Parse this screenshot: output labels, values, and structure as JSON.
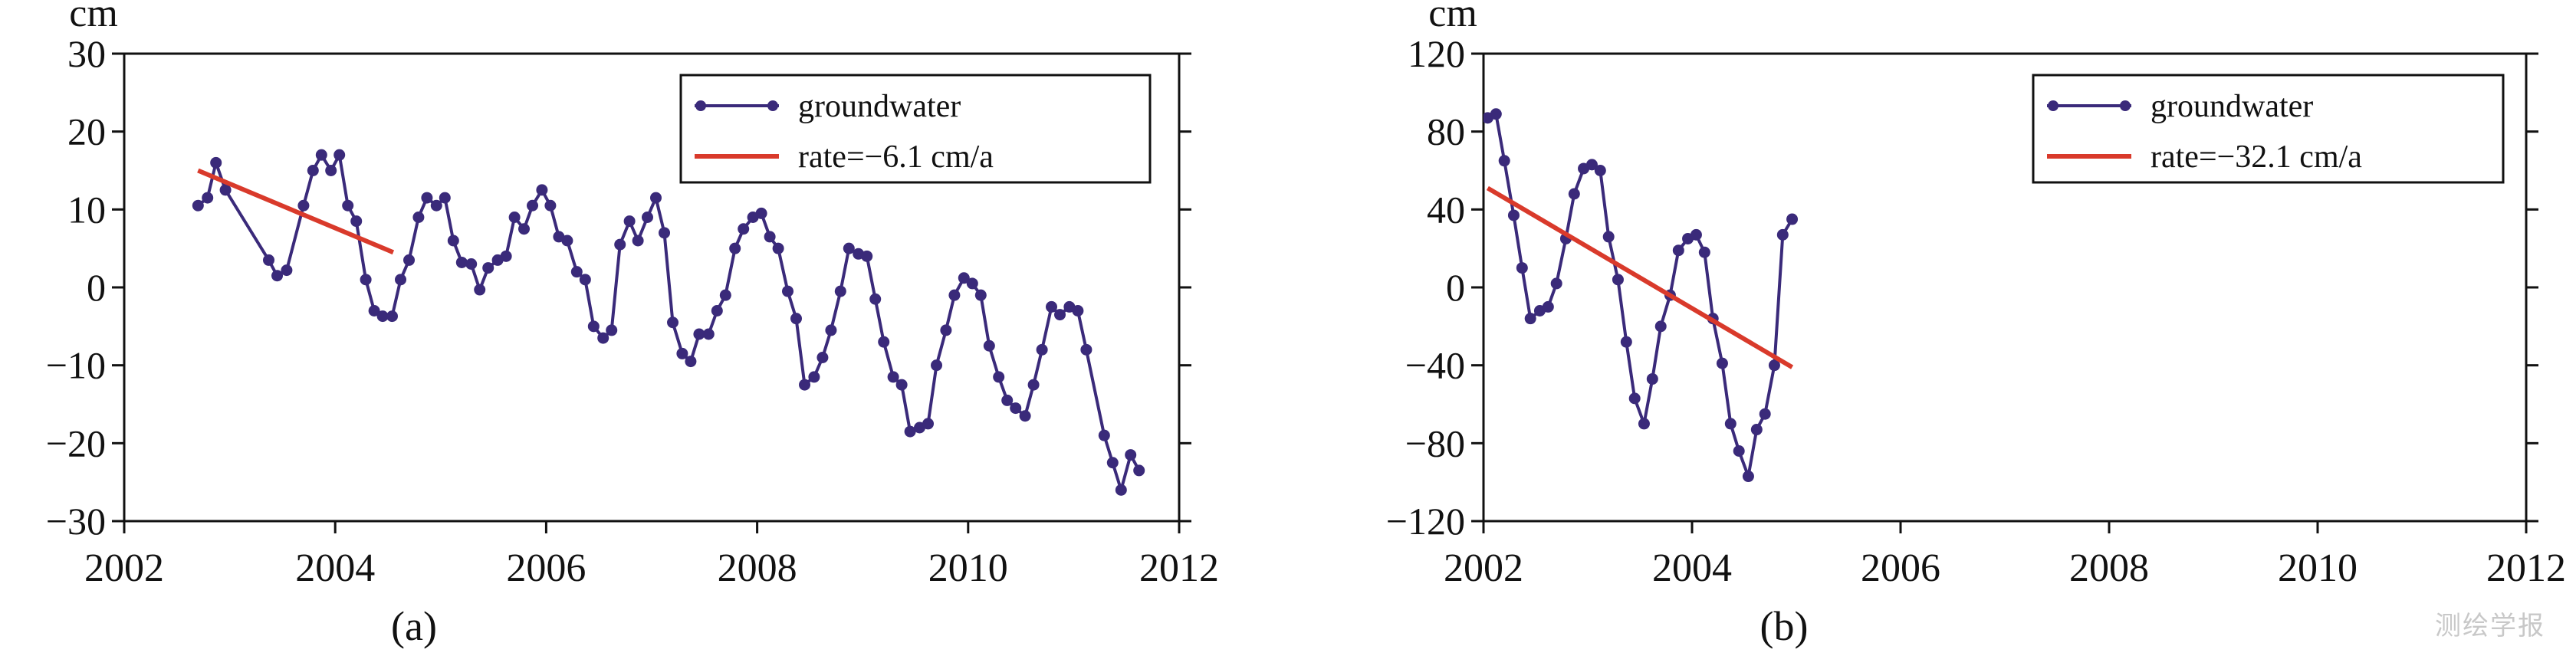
{
  "watermark": "测绘学报",
  "chart_data": [
    {
      "type": "line",
      "panel_label": "(a)",
      "ylabel": "cm",
      "xlim": [
        2002,
        2012
      ],
      "ylim": [
        -30,
        30
      ],
      "x_ticks": [
        2002,
        2004,
        2006,
        2008,
        2010,
        2012
      ],
      "y_ticks": [
        -30,
        -20,
        -10,
        0,
        10,
        20,
        30
      ],
      "legend_position": "top-right",
      "series": [
        {
          "name": "groundwater",
          "color": "#3a2a7a",
          "marker": "circle",
          "points": [
            [
              2002.7,
              10.5
            ],
            [
              2002.79,
              11.5
            ],
            [
              2002.87,
              16
            ],
            [
              2002.96,
              12.5
            ],
            [
              2003.37,
              3.5
            ],
            [
              2003.45,
              1.5
            ],
            [
              2003.54,
              2.2
            ],
            [
              2003.7,
              10.5
            ],
            [
              2003.79,
              15
            ],
            [
              2003.87,
              17
            ],
            [
              2003.96,
              15
            ],
            [
              2004.04,
              17
            ],
            [
              2004.12,
              10.5
            ],
            [
              2004.2,
              8.5
            ],
            [
              2004.29,
              1
            ],
            [
              2004.37,
              -3
            ],
            [
              2004.45,
              -3.7
            ],
            [
              2004.54,
              -3.7
            ],
            [
              2004.62,
              1
            ],
            [
              2004.7,
              3.5
            ],
            [
              2004.79,
              9
            ],
            [
              2004.87,
              11.5
            ],
            [
              2004.96,
              10.5
            ],
            [
              2005.04,
              11.5
            ],
            [
              2005.12,
              6
            ],
            [
              2005.2,
              3.2
            ],
            [
              2005.29,
              3
            ],
            [
              2005.37,
              -0.3
            ],
            [
              2005.45,
              2.5
            ],
            [
              2005.54,
              3.5
            ],
            [
              2005.62,
              4
            ],
            [
              2005.7,
              9
            ],
            [
              2005.79,
              7.5
            ],
            [
              2005.87,
              10.5
            ],
            [
              2005.96,
              12.5
            ],
            [
              2006.04,
              10.5
            ],
            [
              2006.12,
              6.5
            ],
            [
              2006.2,
              6
            ],
            [
              2006.29,
              2
            ],
            [
              2006.37,
              1
            ],
            [
              2006.45,
              -5
            ],
            [
              2006.54,
              -6.5
            ],
            [
              2006.62,
              -5.5
            ],
            [
              2006.7,
              5.5
            ],
            [
              2006.79,
              8.5
            ],
            [
              2006.87,
              6
            ],
            [
              2006.96,
              9
            ],
            [
              2007.04,
              11.5
            ],
            [
              2007.12,
              7
            ],
            [
              2007.2,
              -4.5
            ],
            [
              2007.29,
              -8.5
            ],
            [
              2007.37,
              -9.5
            ],
            [
              2007.45,
              -6
            ],
            [
              2007.54,
              -6
            ],
            [
              2007.62,
              -3
            ],
            [
              2007.7,
              -1
            ],
            [
              2007.79,
              5
            ],
            [
              2007.87,
              7.5
            ],
            [
              2007.96,
              9
            ],
            [
              2008.04,
              9.5
            ],
            [
              2008.12,
              6.5
            ],
            [
              2008.2,
              5
            ],
            [
              2008.29,
              -0.5
            ],
            [
              2008.37,
              -4
            ],
            [
              2008.45,
              -12.5
            ],
            [
              2008.54,
              -11.5
            ],
            [
              2008.62,
              -9
            ],
            [
              2008.7,
              -5.5
            ],
            [
              2008.79,
              -0.5
            ],
            [
              2008.87,
              5
            ],
            [
              2008.96,
              4.3
            ],
            [
              2009.04,
              4
            ],
            [
              2009.12,
              -1.5
            ],
            [
              2009.2,
              -7
            ],
            [
              2009.29,
              -11.5
            ],
            [
              2009.37,
              -12.5
            ],
            [
              2009.45,
              -18.5
            ],
            [
              2009.54,
              -18
            ],
            [
              2009.62,
              -17.5
            ],
            [
              2009.7,
              -10
            ],
            [
              2009.79,
              -5.5
            ],
            [
              2009.87,
              -1
            ],
            [
              2009.96,
              1.2
            ],
            [
              2010.04,
              0.5
            ],
            [
              2010.12,
              -1
            ],
            [
              2010.2,
              -7.5
            ],
            [
              2010.29,
              -11.5
            ],
            [
              2010.37,
              -14.5
            ],
            [
              2010.45,
              -15.5
            ],
            [
              2010.54,
              -16.5
            ],
            [
              2010.62,
              -12.5
            ],
            [
              2010.7,
              -8
            ],
            [
              2010.79,
              -2.5
            ],
            [
              2010.87,
              -3.5
            ],
            [
              2010.96,
              -2.5
            ],
            [
              2011.04,
              -3
            ],
            [
              2011.12,
              -8
            ],
            [
              2011.29,
              -19
            ],
            [
              2011.37,
              -22.5
            ],
            [
              2011.45,
              -26
            ],
            [
              2011.54,
              -21.5
            ],
            [
              2011.62,
              -23.5
            ]
          ]
        },
        {
          "name": "rate=−6.1 cm/a",
          "color": "#d93a2b",
          "marker": "none",
          "points": [
            [
              2002.7,
              15
            ],
            [
              2004.55,
              4.5
            ]
          ]
        }
      ]
    },
    {
      "type": "line",
      "panel_label": "(b)",
      "ylabel": "cm",
      "xlim": [
        2002,
        2012
      ],
      "ylim": [
        -120,
        120
      ],
      "x_ticks": [
        2002,
        2004,
        2006,
        2008,
        2010,
        2012
      ],
      "y_ticks": [
        -120,
        -80,
        -40,
        0,
        40,
        80,
        120
      ],
      "legend_position": "top-right",
      "series": [
        {
          "name": "groundwater",
          "color": "#3a2a7a",
          "marker": "circle",
          "points": [
            [
              2002.04,
              87
            ],
            [
              2002.12,
              89
            ],
            [
              2002.2,
              65
            ],
            [
              2002.29,
              37
            ],
            [
              2002.37,
              10
            ],
            [
              2002.45,
              -16
            ],
            [
              2002.54,
              -12
            ],
            [
              2002.62,
              -10
            ],
            [
              2002.7,
              2
            ],
            [
              2002.79,
              25
            ],
            [
              2002.87,
              48
            ],
            [
              2002.96,
              61
            ],
            [
              2003.04,
              63
            ],
            [
              2003.12,
              60
            ],
            [
              2003.2,
              26
            ],
            [
              2003.29,
              4
            ],
            [
              2003.37,
              -28
            ],
            [
              2003.45,
              -57
            ],
            [
              2003.54,
              -70
            ],
            [
              2003.62,
              -47
            ],
            [
              2003.7,
              -20
            ],
            [
              2003.79,
              -4
            ],
            [
              2003.87,
              19
            ],
            [
              2003.96,
              25
            ],
            [
              2004.04,
              27
            ],
            [
              2004.12,
              18
            ],
            [
              2004.2,
              -16
            ],
            [
              2004.29,
              -39
            ],
            [
              2004.37,
              -70
            ],
            [
              2004.45,
              -84
            ],
            [
              2004.54,
              -97
            ],
            [
              2004.62,
              -73
            ],
            [
              2004.7,
              -65
            ],
            [
              2004.79,
              -40
            ],
            [
              2004.87,
              27
            ],
            [
              2004.96,
              35
            ]
          ]
        },
        {
          "name": "rate=−32.1 cm/a",
          "color": "#d93a2b",
          "marker": "none",
          "points": [
            [
              2002.04,
              51
            ],
            [
              2004.96,
              -41
            ]
          ]
        }
      ]
    }
  ]
}
